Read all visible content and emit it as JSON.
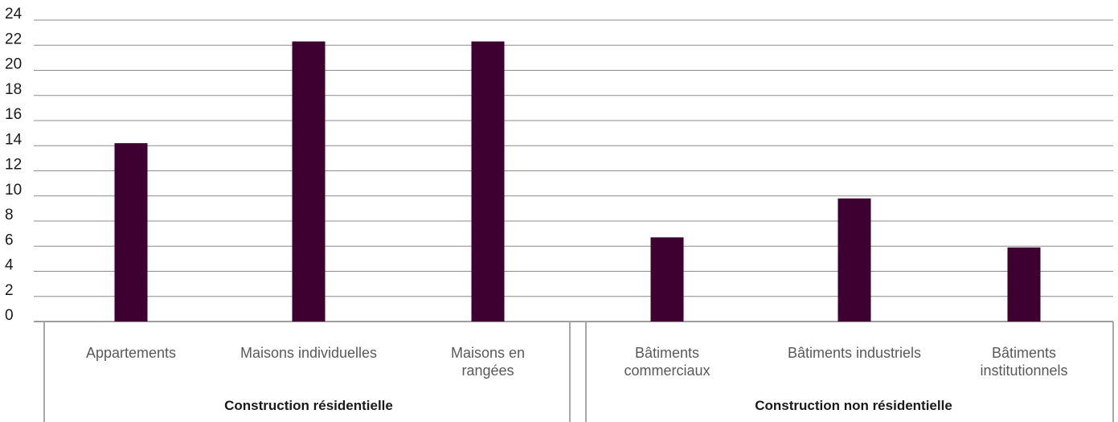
{
  "chart_data": {
    "type": "bar",
    "title": "",
    "xlabel": "",
    "ylabel": "",
    "ylim": [
      0,
      24
    ],
    "yticks": [
      0,
      2,
      4,
      6,
      8,
      10,
      12,
      14,
      16,
      18,
      20,
      22,
      24
    ],
    "grid": true,
    "legend": "none",
    "bar_color": "#3d0030",
    "categories": [
      "Appartements",
      "Maisons individuelles",
      "Maisons en rangées",
      "Bâtiments commerciaux",
      "Bâtiments industriels",
      "Bâtiments institutionnels"
    ],
    "values": [
      14.2,
      22.3,
      22.3,
      6.7,
      9.8,
      5.9
    ],
    "groups": [
      {
        "label": "Construction résidentielle",
        "categories": [
          0,
          1,
          2
        ]
      },
      {
        "label": "Construction non résidentielle",
        "categories": [
          3,
          4,
          5
        ]
      }
    ]
  }
}
